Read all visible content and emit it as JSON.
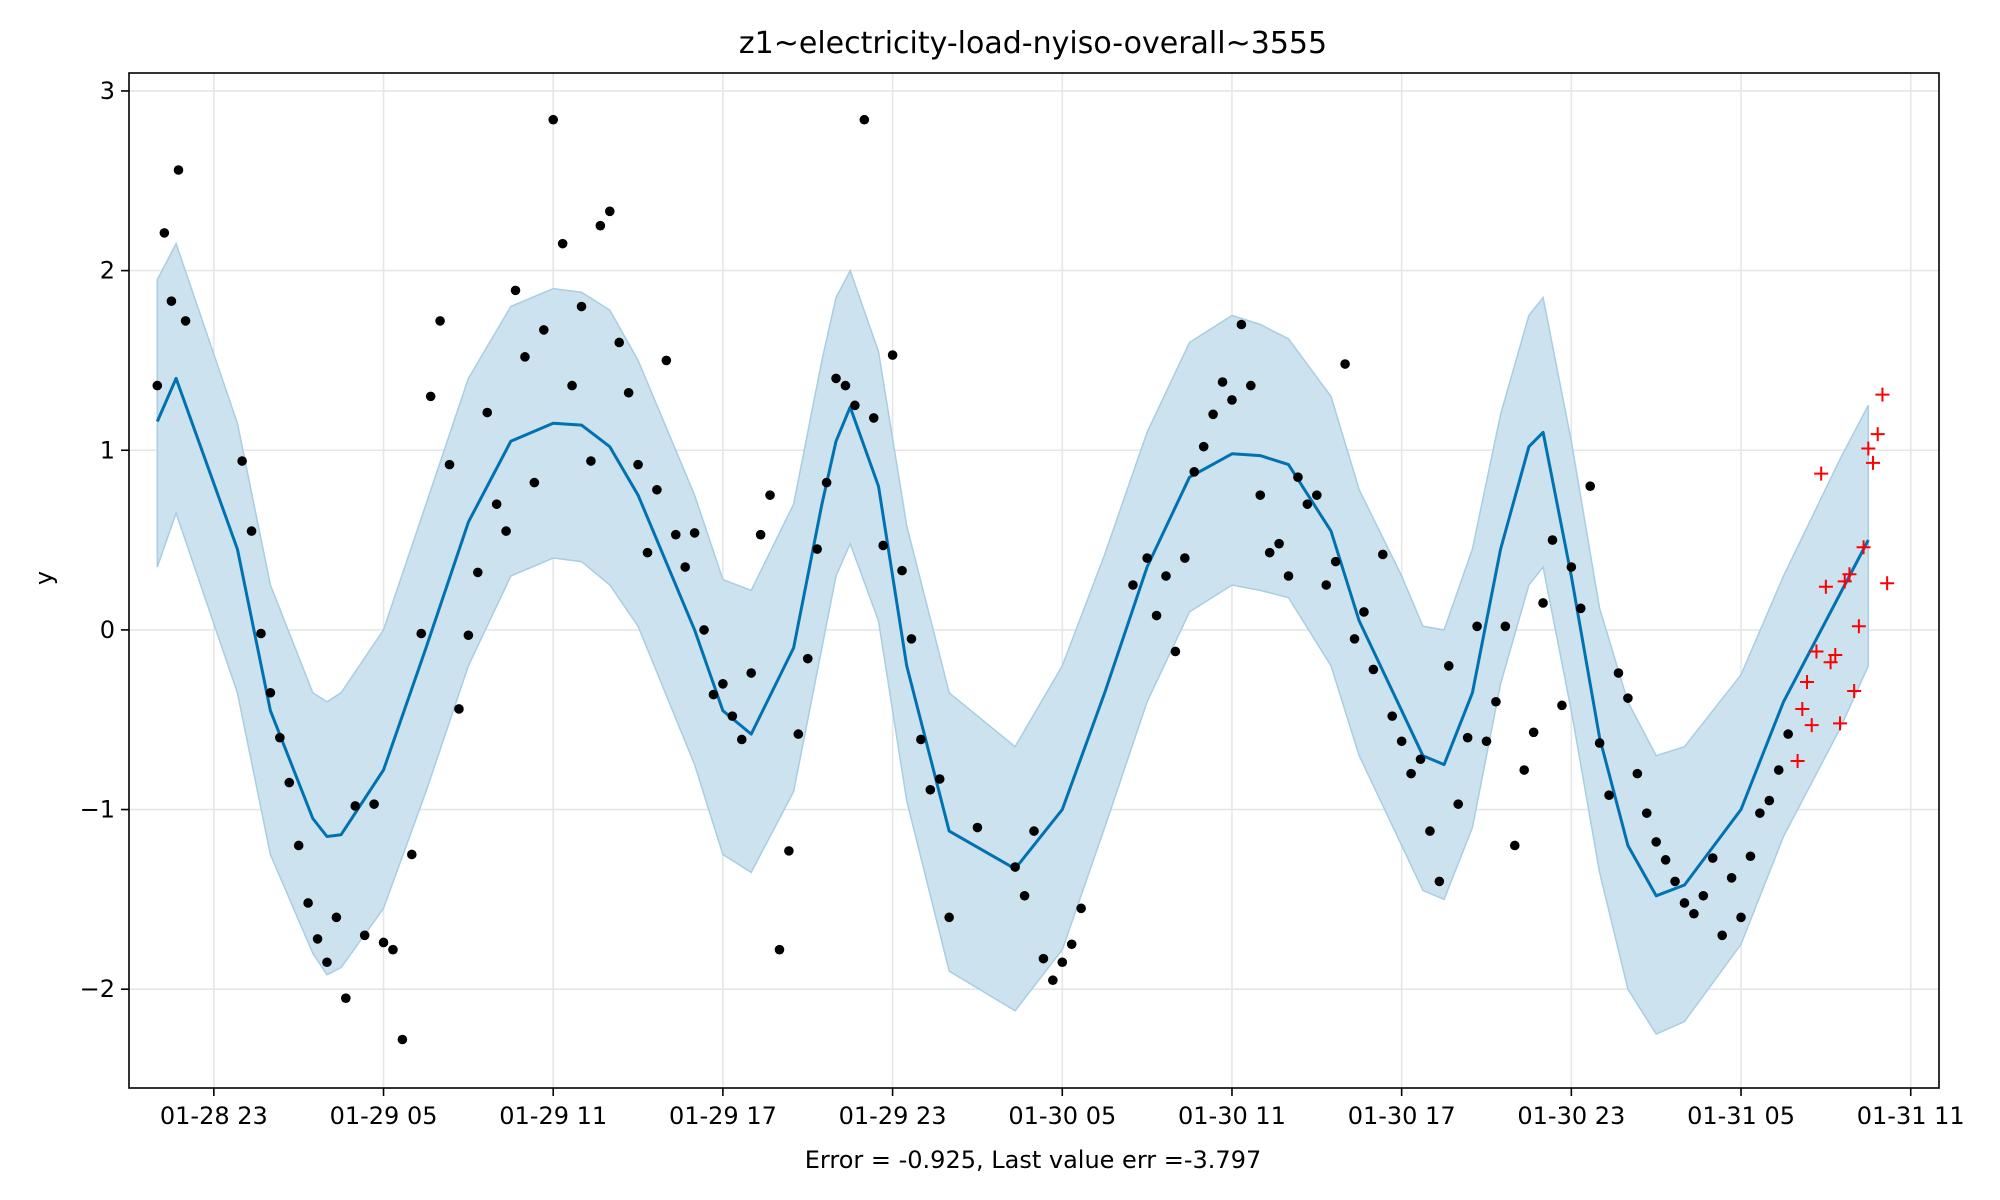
{
  "chart_data": {
    "type": "line",
    "title": "z1~electricity-load-nyiso-overall~3555",
    "xlabel": "Error = -0.925, Last value err =-3.797",
    "ylabel": "y",
    "x_unit": "hour",
    "xlim": [
      "2025-01-28 20:00",
      "2025-01-31 12:00"
    ],
    "ylim": [
      -2.55,
      3.1
    ],
    "grid": true,
    "x_ticks": [
      {
        "at": "2025-01-28 23:00",
        "label": "01-28 23"
      },
      {
        "at": "2025-01-29 05:00",
        "label": "01-29 05"
      },
      {
        "at": "2025-01-29 11:00",
        "label": "01-29 11"
      },
      {
        "at": "2025-01-29 17:00",
        "label": "01-29 17"
      },
      {
        "at": "2025-01-29 23:00",
        "label": "01-29 23"
      },
      {
        "at": "2025-01-30 05:00",
        "label": "01-30 05"
      },
      {
        "at": "2025-01-30 11:00",
        "label": "01-30 11"
      },
      {
        "at": "2025-01-30 17:00",
        "label": "01-30 17"
      },
      {
        "at": "2025-01-30 23:00",
        "label": "01-30 23"
      },
      {
        "at": "2025-01-31 05:00",
        "label": "01-31 05"
      },
      {
        "at": "2025-01-31 11:00",
        "label": "01-31 11"
      }
    ],
    "y_ticks": [
      {
        "value": -2,
        "label": "−2"
      },
      {
        "value": -1,
        "label": "−1"
      },
      {
        "value": 0,
        "label": "0"
      },
      {
        "value": 1,
        "label": "1"
      },
      {
        "value": 2,
        "label": "2"
      },
      {
        "value": 3,
        "label": "3"
      }
    ],
    "colors": {
      "forecast": "#0072b2",
      "band": "#cce2ef",
      "band_edge": "#a9cde3",
      "observed": "#000000",
      "future": "#ff0000",
      "grid": "#e6e6e6"
    },
    "forecast": {
      "x": [
        "2025-01-28 21:00",
        "2025-01-28 21:40",
        "2025-01-28 23:50",
        "2025-01-29 01:00",
        "2025-01-29 02:30",
        "2025-01-29 03:00",
        "2025-01-29 03:30",
        "2025-01-29 05:00",
        "2025-01-29 06:30",
        "2025-01-29 08:00",
        "2025-01-29 09:30",
        "2025-01-29 11:00",
        "2025-01-29 12:00",
        "2025-01-29 13:00",
        "2025-01-29 14:00",
        "2025-01-29 16:00",
        "2025-01-29 17:00",
        "2025-01-29 18:00",
        "2025-01-29 19:30",
        "2025-01-29 20:30",
        "2025-01-29 21:00",
        "2025-01-29 21:30",
        "2025-01-29 22:30",
        "2025-01-29 23:30",
        "2025-01-30 01:00",
        "2025-01-30 03:20",
        "2025-01-30 05:00",
        "2025-01-30 06:30",
        "2025-01-30 08:00",
        "2025-01-30 09:30",
        "2025-01-30 11:00",
        "2025-01-30 12:00",
        "2025-01-30 13:00",
        "2025-01-30 14:30",
        "2025-01-30 15:30",
        "2025-01-30 17:00",
        "2025-01-30 17:45",
        "2025-01-30 18:30",
        "2025-01-30 19:30",
        "2025-01-30 20:30",
        "2025-01-30 21:30",
        "2025-01-30 22:00",
        "2025-01-30 23:00",
        "2025-01-31 00:00",
        "2025-01-31 01:00",
        "2025-01-31 02:00",
        "2025-01-31 03:00",
        "2025-01-31 05:00",
        "2025-01-31 06:30",
        "2025-01-31 08:30",
        "2025-01-31 09:30"
      ],
      "y": [
        1.16,
        1.4,
        0.45,
        -0.45,
        -1.05,
        -1.15,
        -1.14,
        -0.78,
        -0.1,
        0.6,
        1.05,
        1.15,
        1.14,
        1.02,
        0.75,
        0.0,
        -0.45,
        -0.58,
        -0.1,
        0.7,
        1.05,
        1.24,
        0.8,
        -0.2,
        -1.12,
        -1.33,
        -1.0,
        -0.35,
        0.35,
        0.85,
        0.98,
        0.97,
        0.92,
        0.55,
        0.05,
        -0.45,
        -0.7,
        -0.75,
        -0.35,
        0.45,
        1.02,
        1.1,
        0.3,
        -0.6,
        -1.2,
        -1.48,
        -1.42,
        -1.0,
        -0.4,
        0.2,
        0.5
      ]
    },
    "band": {
      "x": [
        "2025-01-28 21:00",
        "2025-01-28 21:40",
        "2025-01-28 23:50",
        "2025-01-29 01:00",
        "2025-01-29 02:30",
        "2025-01-29 03:00",
        "2025-01-29 03:30",
        "2025-01-29 05:00",
        "2025-01-29 06:30",
        "2025-01-29 08:00",
        "2025-01-29 09:30",
        "2025-01-29 11:00",
        "2025-01-29 12:00",
        "2025-01-29 13:00",
        "2025-01-29 14:00",
        "2025-01-29 16:00",
        "2025-01-29 17:00",
        "2025-01-29 18:00",
        "2025-01-29 19:30",
        "2025-01-29 20:30",
        "2025-01-29 21:00",
        "2025-01-29 21:30",
        "2025-01-29 22:30",
        "2025-01-29 23:30",
        "2025-01-30 01:00",
        "2025-01-30 03:20",
        "2025-01-30 05:00",
        "2025-01-30 06:30",
        "2025-01-30 08:00",
        "2025-01-30 09:30",
        "2025-01-30 11:00",
        "2025-01-30 12:00",
        "2025-01-30 13:00",
        "2025-01-30 14:30",
        "2025-01-30 15:30",
        "2025-01-30 17:00",
        "2025-01-30 17:45",
        "2025-01-30 18:30",
        "2025-01-30 19:30",
        "2025-01-30 20:30",
        "2025-01-30 21:30",
        "2025-01-30 22:00",
        "2025-01-30 23:00",
        "2025-01-31 00:00",
        "2025-01-31 01:00",
        "2025-01-31 02:00",
        "2025-01-31 03:00",
        "2025-01-31 05:00",
        "2025-01-31 06:30",
        "2025-01-31 08:30",
        "2025-01-31 09:30"
      ],
      "upper": [
        1.95,
        2.15,
        1.15,
        0.25,
        -0.35,
        -0.4,
        -0.35,
        0.0,
        0.7,
        1.4,
        1.8,
        1.9,
        1.88,
        1.78,
        1.5,
        0.75,
        0.28,
        0.22,
        0.7,
        1.5,
        1.85,
        2.0,
        1.55,
        0.58,
        -0.35,
        -0.65,
        -0.2,
        0.42,
        1.1,
        1.6,
        1.75,
        1.7,
        1.62,
        1.3,
        0.78,
        0.3,
        0.02,
        0.0,
        0.45,
        1.2,
        1.75,
        1.85,
        1.05,
        0.12,
        -0.4,
        -0.7,
        -0.65,
        -0.25,
        0.3,
        0.95,
        1.25
      ],
      "lower": [
        0.35,
        0.65,
        -0.35,
        -1.25,
        -1.8,
        -1.92,
        -1.88,
        -1.55,
        -0.9,
        -0.2,
        0.3,
        0.4,
        0.38,
        0.25,
        0.02,
        -0.75,
        -1.25,
        -1.35,
        -0.9,
        -0.1,
        0.3,
        0.48,
        0.05,
        -0.95,
        -1.9,
        -2.12,
        -1.78,
        -1.1,
        -0.4,
        0.1,
        0.25,
        0.22,
        0.18,
        -0.2,
        -0.7,
        -1.2,
        -1.45,
        -1.5,
        -1.1,
        -0.3,
        0.25,
        0.35,
        -0.45,
        -1.35,
        -2.0,
        -2.25,
        -2.18,
        -1.75,
        -1.15,
        -0.55,
        -0.2
      ]
    },
    "observed": {
      "x": [
        "2025-01-28 21:00",
        "2025-01-28 21:15",
        "2025-01-28 21:30",
        "2025-01-28 21:45",
        "2025-01-28 22:00",
        "2025-01-29 00:00",
        "2025-01-29 00:20",
        "2025-01-29 00:40",
        "2025-01-29 01:00",
        "2025-01-29 01:20",
        "2025-01-29 01:40",
        "2025-01-29 02:00",
        "2025-01-29 02:20",
        "2025-01-29 02:40",
        "2025-01-29 03:00",
        "2025-01-29 03:20",
        "2025-01-29 03:40",
        "2025-01-29 04:00",
        "2025-01-29 04:20",
        "2025-01-29 04:40",
        "2025-01-29 05:00",
        "2025-01-29 05:20",
        "2025-01-29 05:40",
        "2025-01-29 06:00",
        "2025-01-29 06:20",
        "2025-01-29 06:40",
        "2025-01-29 07:00",
        "2025-01-29 07:20",
        "2025-01-29 07:40",
        "2025-01-29 08:00",
        "2025-01-29 08:20",
        "2025-01-29 08:40",
        "2025-01-29 09:00",
        "2025-01-29 09:20",
        "2025-01-29 09:40",
        "2025-01-29 10:00",
        "2025-01-29 10:20",
        "2025-01-29 10:40",
        "2025-01-29 11:00",
        "2025-01-29 11:20",
        "2025-01-29 11:40",
        "2025-01-29 12:00",
        "2025-01-29 12:20",
        "2025-01-29 12:40",
        "2025-01-29 13:00",
        "2025-01-29 13:20",
        "2025-01-29 13:40",
        "2025-01-29 14:00",
        "2025-01-29 14:20",
        "2025-01-29 14:40",
        "2025-01-29 15:00",
        "2025-01-29 15:20",
        "2025-01-29 15:40",
        "2025-01-29 16:00",
        "2025-01-29 16:20",
        "2025-01-29 16:40",
        "2025-01-29 17:00",
        "2025-01-29 17:20",
        "2025-01-29 17:40",
        "2025-01-29 18:00",
        "2025-01-29 18:20",
        "2025-01-29 18:40",
        "2025-01-29 19:00",
        "2025-01-29 19:20",
        "2025-01-29 19:40",
        "2025-01-29 20:00",
        "2025-01-29 20:20",
        "2025-01-29 20:40",
        "2025-01-29 21:00",
        "2025-01-29 21:20",
        "2025-01-29 21:40",
        "2025-01-29 22:00",
        "2025-01-29 22:20",
        "2025-01-29 22:40",
        "2025-01-29 23:00",
        "2025-01-29 23:20",
        "2025-01-29 23:40",
        "2025-01-30 00:00",
        "2025-01-30 00:20",
        "2025-01-30 00:40",
        "2025-01-30 01:00",
        "2025-01-30 02:00",
        "2025-01-30 03:20",
        "2025-01-30 03:40",
        "2025-01-30 04:00",
        "2025-01-30 04:20",
        "2025-01-30 04:40",
        "2025-01-30 05:00",
        "2025-01-30 05:20",
        "2025-01-30 05:40",
        "2025-01-30 07:30",
        "2025-01-30 08:00",
        "2025-01-30 08:20",
        "2025-01-30 08:40",
        "2025-01-30 09:00",
        "2025-01-30 09:20",
        "2025-01-30 09:40",
        "2025-01-30 10:00",
        "2025-01-30 10:20",
        "2025-01-30 10:40",
        "2025-01-30 11:00",
        "2025-01-30 11:20",
        "2025-01-30 11:40",
        "2025-01-30 12:00",
        "2025-01-30 12:20",
        "2025-01-30 12:40",
        "2025-01-30 13:00",
        "2025-01-30 13:20",
        "2025-01-30 13:40",
        "2025-01-30 14:00",
        "2025-01-30 14:20",
        "2025-01-30 14:40",
        "2025-01-30 15:00",
        "2025-01-30 15:20",
        "2025-01-30 15:40",
        "2025-01-30 16:00",
        "2025-01-30 16:20",
        "2025-01-30 16:40",
        "2025-01-30 17:00",
        "2025-01-30 17:20",
        "2025-01-30 17:40",
        "2025-01-30 18:00",
        "2025-01-30 18:20",
        "2025-01-30 18:40",
        "2025-01-30 19:00",
        "2025-01-30 19:20",
        "2025-01-30 19:40",
        "2025-01-30 20:00",
        "2025-01-30 20:20",
        "2025-01-30 20:40",
        "2025-01-30 21:00",
        "2025-01-30 21:20",
        "2025-01-30 21:40",
        "2025-01-30 22:00",
        "2025-01-30 22:20",
        "2025-01-30 22:40",
        "2025-01-30 23:00",
        "2025-01-30 23:20",
        "2025-01-30 23:40",
        "2025-01-31 00:00",
        "2025-01-31 00:20",
        "2025-01-31 00:40",
        "2025-01-31 01:00",
        "2025-01-31 01:20",
        "2025-01-31 01:40",
        "2025-01-31 02:00",
        "2025-01-31 02:20",
        "2025-01-31 02:40",
        "2025-01-31 03:00",
        "2025-01-31 03:20",
        "2025-01-31 03:40",
        "2025-01-31 04:00",
        "2025-01-31 04:20",
        "2025-01-31 04:40",
        "2025-01-31 05:00",
        "2025-01-31 05:20",
        "2025-01-31 05:40",
        "2025-01-31 06:00",
        "2025-01-31 06:20",
        "2025-01-31 06:40"
      ],
      "y": [
        1.36,
        2.21,
        1.83,
        2.56,
        1.72,
        0.94,
        0.55,
        -0.02,
        -0.35,
        -0.6,
        -0.85,
        -1.2,
        -1.52,
        -1.72,
        -1.85,
        -1.6,
        -2.05,
        -0.98,
        -1.7,
        -0.97,
        -1.74,
        -1.78,
        -2.28,
        -1.25,
        -0.02,
        1.3,
        1.72,
        0.92,
        -0.44,
        -0.03,
        0.32,
        1.21,
        0.7,
        0.55,
        1.89,
        1.52,
        0.82,
        1.67,
        2.84,
        2.15,
        1.36,
        1.8,
        0.94,
        2.25,
        2.33,
        1.6,
        1.32,
        0.92,
        0.43,
        0.78,
        1.5,
        0.53,
        0.35,
        0.54,
        0.0,
        -0.36,
        -0.3,
        -0.48,
        -0.61,
        -0.24,
        0.53,
        0.75,
        -1.78,
        -1.23,
        -0.58,
        -0.16,
        0.45,
        0.82,
        1.4,
        1.36,
        1.25,
        2.84,
        1.18,
        0.47,
        1.53,
        0.33,
        -0.05,
        -0.61,
        -0.89,
        -0.83,
        -1.6,
        -1.1,
        -1.32,
        -1.48,
        -1.12,
        -1.83,
        -1.95,
        -1.85,
        -1.75,
        -1.55,
        0.25,
        0.4,
        0.08,
        0.3,
        -0.12,
        0.4,
        0.88,
        1.02,
        1.2,
        1.38,
        1.28,
        1.7,
        1.36,
        0.75,
        0.43,
        0.48,
        0.3,
        0.85,
        0.7,
        0.75,
        0.25,
        0.38,
        1.48,
        -0.05,
        0.1,
        -0.22,
        0.42,
        -0.48,
        -0.62,
        -0.8,
        -0.72,
        -1.12,
        -1.4,
        -0.2,
        -0.97,
        -0.6,
        0.02,
        -0.62,
        -0.4,
        0.02,
        -1.2,
        -0.78,
        -0.57,
        0.15,
        0.5,
        -0.42,
        0.35,
        0.12,
        0.8,
        -0.63,
        -0.92,
        -0.24,
        -0.38,
        -0.8,
        -1.02,
        -1.18,
        -1.28,
        -1.4,
        -1.52,
        -1.58,
        -1.48,
        -1.27,
        -1.7,
        -1.38,
        -1.6,
        -1.26,
        -1.02,
        -0.95,
        -0.78,
        -0.58
      ]
    },
    "future_actuals": {
      "x": [
        "2025-01-31 07:00",
        "2025-01-31 07:10",
        "2025-01-31 07:20",
        "2025-01-31 07:30",
        "2025-01-31 07:40",
        "2025-01-31 07:50",
        "2025-01-31 08:00",
        "2025-01-31 08:10",
        "2025-01-31 08:20",
        "2025-01-31 08:30",
        "2025-01-31 08:40",
        "2025-01-31 08:50",
        "2025-01-31 09:00",
        "2025-01-31 09:10",
        "2025-01-31 09:20",
        "2025-01-31 09:30",
        "2025-01-31 09:40",
        "2025-01-31 09:50",
        "2025-01-31 10:00",
        "2025-01-31 10:10"
      ],
      "y": [
        -0.73,
        -0.44,
        -0.29,
        -0.53,
        -0.12,
        0.87,
        0.24,
        -0.18,
        -0.14,
        -0.52,
        0.27,
        0.31,
        -0.34,
        0.02,
        0.46,
        1.01,
        0.93,
        1.09,
        1.31,
        0.26
      ]
    }
  }
}
